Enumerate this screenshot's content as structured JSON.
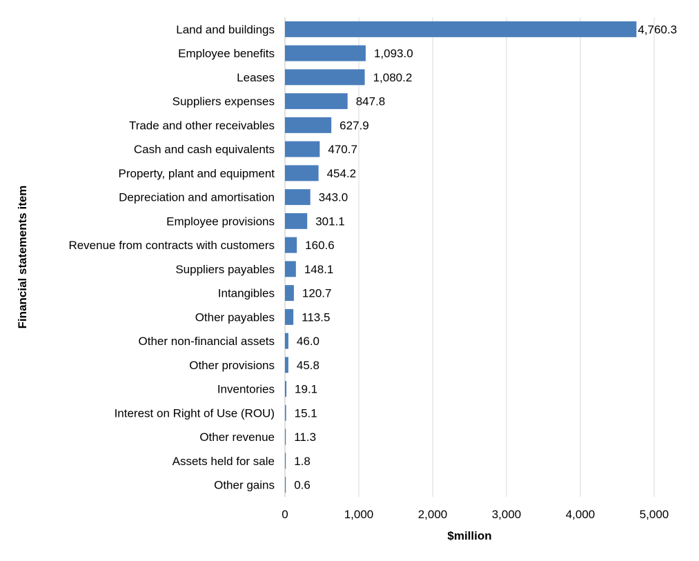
{
  "chart_data": {
    "type": "bar",
    "orientation": "horizontal",
    "categories": [
      "Land and buildings",
      "Employee benefits",
      "Leases",
      "Suppliers expenses",
      "Trade and other receivables",
      "Cash and cash equivalents",
      "Property, plant and equipment",
      "Depreciation and amortisation",
      "Employee provisions",
      "Revenue from contracts with customers",
      "Suppliers payables",
      "Intangibles",
      "Other payables",
      "Other non-financial assets",
      "Other provisions",
      "Inventories",
      "Interest on Right of Use (ROU)",
      "Other revenue",
      "Assets held for sale",
      "Other gains"
    ],
    "values": [
      4760.3,
      1093.0,
      1080.2,
      847.8,
      627.9,
      470.7,
      454.2,
      343.0,
      301.1,
      160.6,
      148.1,
      120.7,
      113.5,
      46.0,
      45.8,
      19.1,
      15.1,
      11.3,
      1.8,
      0.6
    ],
    "value_labels": [
      "4,760.3",
      "1,093.0",
      "1,080.2",
      "847.8",
      "627.9",
      "470.7",
      "454.2",
      "343.0",
      "301.1",
      "160.6",
      "148.1",
      "120.7",
      "113.5",
      "46.0",
      "45.8",
      "19.1",
      "15.1",
      "11.3",
      "1.8",
      "0.6"
    ],
    "xlabel": "$million",
    "ylabel": "Financial statements item",
    "xlim": [
      0,
      5000
    ],
    "xticks": [
      0,
      1000,
      2000,
      3000,
      4000,
      5000
    ],
    "xtick_labels": [
      "0",
      "1,000",
      "2,000",
      "3,000",
      "4,000",
      "5,000"
    ],
    "grid": "vertical",
    "legend": "none",
    "bar_color": "#4a7ebb"
  }
}
